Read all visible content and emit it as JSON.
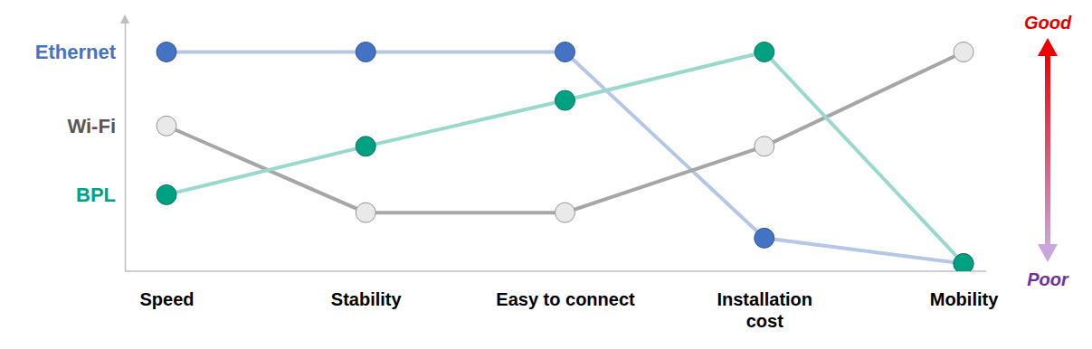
{
  "chart_data": {
    "type": "line",
    "categories": [
      "Speed",
      "Stability",
      "Easy to connect",
      "Installation\ncost",
      "Mobility"
    ],
    "ylim": [
      0,
      10
    ],
    "yticks": [
      {
        "value": 8.6,
        "label": "Ethernet"
      },
      {
        "value": 5.7,
        "label": "Wi-Fi"
      },
      {
        "value": 3.0,
        "label": "BPL"
      }
    ],
    "tick_labels": true,
    "grid": false,
    "annotations": [
      {
        "text": "Good"
      },
      {
        "text": "Poor"
      }
    ],
    "series": [
      {
        "name": "Ethernet",
        "color": "#4472c4",
        "marker": "circle",
        "values": [
          8.6,
          8.6,
          8.6,
          1.3,
          0.3
        ]
      },
      {
        "name": "Wi-Fi",
        "color": "#a6a6a6",
        "marker": "open-circle",
        "values": [
          5.7,
          2.3,
          2.3,
          4.9,
          8.6
        ]
      },
      {
        "name": "BPL",
        "color": "#00a082",
        "marker": "circle",
        "values": [
          3.0,
          4.9,
          6.7,
          8.6,
          0.3
        ]
      }
    ]
  }
}
